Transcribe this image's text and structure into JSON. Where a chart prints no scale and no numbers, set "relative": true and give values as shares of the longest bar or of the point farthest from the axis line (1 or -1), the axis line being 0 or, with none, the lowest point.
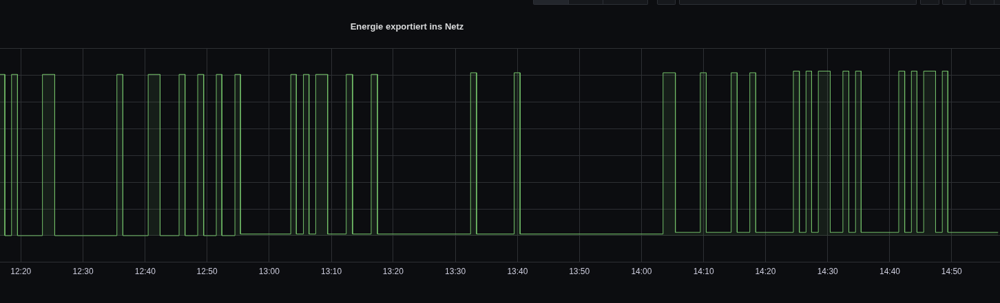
{
  "chart_data": {
    "type": "area",
    "title": "Energie exportiert ins Netz",
    "relative": true,
    "grid": true,
    "xlim": [
      12.277,
      14.963
    ],
    "xticks": [
      {
        "value": 12.333,
        "label": "12:20"
      },
      {
        "value": 12.5,
        "label": "12:30"
      },
      {
        "value": 12.667,
        "label": "12:40"
      },
      {
        "value": 12.833,
        "label": "12:50"
      },
      {
        "value": 13,
        "label": "13:00"
      },
      {
        "value": 13.167,
        "label": "13:10"
      },
      {
        "value": 13.333,
        "label": "13:20"
      },
      {
        "value": 13.5,
        "label": "13:30"
      },
      {
        "value": 13.667,
        "label": "13:40"
      },
      {
        "value": 13.833,
        "label": "13:50"
      },
      {
        "value": 14,
        "label": "14:00"
      },
      {
        "value": 14.167,
        "label": "14:10"
      },
      {
        "value": 14.333,
        "label": "14:20"
      },
      {
        "value": 14.5,
        "label": "14:30"
      },
      {
        "value": 14.667,
        "label": "14:40"
      },
      {
        "value": 14.833,
        "label": "14:50"
      }
    ],
    "series": [
      {
        "color": "#73bf69",
        "x": [
          12.277,
          12.29,
          12.29,
          12.308,
          12.308,
          12.324,
          12.324,
          12.391,
          12.391,
          12.424,
          12.424,
          12.591,
          12.591,
          12.607,
          12.607,
          12.675,
          12.675,
          12.707,
          12.707,
          12.758,
          12.758,
          12.774,
          12.774,
          12.808,
          12.808,
          12.824,
          12.824,
          12.858,
          12.858,
          12.873,
          12.873,
          12.908,
          12.908,
          12.923,
          12.923,
          13.058,
          13.058,
          13.073,
          13.073,
          13.092,
          13.092,
          13.107,
          13.107,
          13.125,
          13.125,
          13.157,
          13.157,
          13.207,
          13.207,
          13.224,
          13.224,
          13.274,
          13.274,
          13.291,
          13.291,
          13.541,
          13.541,
          13.557,
          13.557,
          13.658,
          13.658,
          13.674,
          13.674,
          14.058,
          14.058,
          14.091,
          14.091,
          14.158,
          14.158,
          14.174,
          14.174,
          14.241,
          14.241,
          14.257,
          14.257,
          14.291,
          14.291,
          14.307,
          14.307,
          14.408,
          14.408,
          14.424,
          14.424,
          14.442,
          14.442,
          14.457,
          14.457,
          14.475,
          14.475,
          14.507,
          14.507,
          14.541,
          14.541,
          14.557,
          14.557,
          14.575,
          14.575,
          14.59,
          14.59,
          14.691,
          14.691,
          14.707,
          14.707,
          14.725,
          14.725,
          14.74,
          14.74,
          14.758,
          14.758,
          14.79,
          14.79,
          14.808,
          14.808,
          14.823,
          14.823,
          14.958
        ],
        "values": [
          0.98,
          0.98,
          0,
          0,
          0.98,
          0.98,
          0,
          0,
          0.98,
          0.98,
          0,
          0,
          0.98,
          0.98,
          0,
          0,
          0.98,
          0.98,
          0,
          0,
          0.98,
          0.98,
          0,
          0,
          0.98,
          0.98,
          0,
          0,
          0.98,
          0.98,
          0,
          0,
          0.98,
          0.98,
          0.01,
          0.01,
          0.98,
          0.98,
          0.01,
          0.01,
          0.98,
          0.98,
          0.01,
          0.01,
          0.98,
          0.98,
          0.01,
          0.01,
          0.98,
          0.98,
          0.01,
          0.01,
          0.98,
          0.98,
          0.01,
          0.01,
          0.99,
          0.99,
          0.01,
          0.01,
          0.99,
          0.99,
          0.01,
          0.01,
          0.99,
          0.99,
          0.02,
          0.02,
          0.99,
          0.99,
          0.02,
          0.02,
          0.99,
          0.99,
          0.02,
          0.02,
          0.99,
          0.99,
          0.02,
          0.02,
          1,
          1,
          0.02,
          0.02,
          1,
          1,
          0.02,
          0.02,
          1,
          1,
          0.02,
          0.02,
          1,
          1,
          0.02,
          0.02,
          1,
          1,
          0.02,
          0.02,
          1,
          1,
          0.02,
          0.02,
          1,
          1,
          0.02,
          0.02,
          1,
          1,
          0.02,
          0.02,
          1,
          1,
          0.02,
          0.02
        ]
      }
    ]
  }
}
